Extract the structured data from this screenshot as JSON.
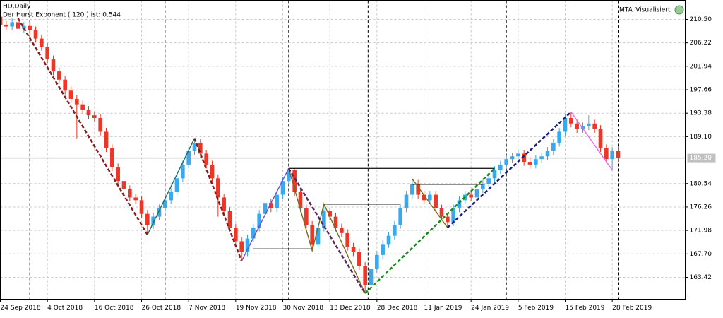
{
  "chart_data": {
    "type": "candlestick",
    "title": "HD,Daily",
    "subtitle": "Der Hurst Exponent ( 120 ) ist: 0.544",
    "annotation": "MTA_Visualisiert",
    "up_color": "#3aa8ec",
    "down_color": "#ee3526",
    "grid": true,
    "xlim": [
      0,
      116.4
    ],
    "ylim": [
      159.42,
      213.98
    ],
    "xticks": [
      {
        "value": 0,
        "label": "24 Sep 2018"
      },
      {
        "value": 8,
        "label": "4 Oct 2018"
      },
      {
        "value": 16,
        "label": "16 Oct 2018"
      },
      {
        "value": 24,
        "label": "26 Oct 2018"
      },
      {
        "value": 32,
        "label": "7 Nov 2018"
      },
      {
        "value": 40,
        "label": "19 Nov 2018"
      },
      {
        "value": 48,
        "label": "30 Nov 2018"
      },
      {
        "value": 56,
        "label": "13 Dec 2018"
      },
      {
        "value": 64,
        "label": "28 Dec 2018"
      },
      {
        "value": 72,
        "label": "11 Jan 2019"
      },
      {
        "value": 80,
        "label": "24 Jan 2019"
      },
      {
        "value": 88,
        "label": "5 Feb 2019"
      },
      {
        "value": 96,
        "label": "15 Feb 2019"
      },
      {
        "value": 104,
        "label": "28 Feb 2019"
      }
    ],
    "yticks": [
      {
        "value": 210.5,
        "label": "210.50"
      },
      206.22,
      201.94,
      197.66,
      193.38,
      {
        "value": 189.1,
        "label": "189.10"
      },
      180.54,
      176.26,
      171.98,
      {
        "value": 167.7,
        "label": "167.70"
      },
      163.42
    ],
    "current_price": {
      "value": 185.2,
      "label": "185.20"
    },
    "period_separators": [
      5,
      28,
      49,
      62.5,
      86,
      105
    ],
    "open": [
      211.0,
      209.5,
      209.2,
      210.0,
      208.8,
      209.3,
      208.5,
      207.0,
      205.5,
      203.2,
      201.0,
      199.5,
      197.5,
      196.0,
      195.0,
      194.0,
      193.0,
      192.5,
      190.0,
      187.0,
      183.5,
      181.0,
      179.5,
      178.0,
      177.5,
      175.0,
      173.0,
      174.5,
      176.0,
      177.5,
      179.0,
      181.5,
      184.0,
      186.5,
      188.0,
      186.0,
      184.0,
      181.5,
      178.0,
      175.5,
      172.5,
      170.0,
      168.0,
      170.5,
      172.5,
      175.0,
      177.0,
      176.0,
      178.5,
      181.0,
      183.0,
      179.0,
      176.0,
      173.0,
      169.5,
      172.5,
      175.5,
      174.5,
      172.5,
      171.5,
      169.0,
      168.0,
      165.5,
      162.0,
      165.0,
      167.5,
      169.5,
      171.0,
      173.0,
      176.0,
      178.5,
      180.5,
      178.5,
      177.5,
      178.5,
      176.0,
      174.5,
      173.5,
      176.0,
      177.5,
      178.5,
      178.0,
      179.5,
      180.5,
      181.5,
      183.0,
      184.0,
      185.0,
      185.5,
      186.0,
      184.5,
      184.0,
      185.0,
      185.5,
      186.5,
      188.0,
      190.0,
      192.5,
      191.5,
      190.5,
      191.0,
      191.5,
      190.5,
      187.0,
      185.0,
      186.5
    ],
    "high": [
      211.7,
      210.2,
      210.7,
      210.7,
      210.0,
      210.0,
      209.2,
      207.7,
      206.2,
      203.9,
      201.7,
      200.2,
      198.2,
      196.7,
      195.7,
      194.7,
      193.7,
      193.2,
      190.7,
      187.7,
      184.2,
      181.7,
      180.2,
      178.7,
      178.2,
      175.7,
      175.2,
      176.7,
      178.2,
      179.7,
      182.2,
      184.7,
      187.2,
      188.8,
      188.7,
      186.7,
      184.7,
      182.2,
      178.7,
      176.2,
      173.2,
      170.7,
      171.2,
      173.2,
      175.7,
      177.7,
      177.7,
      179.2,
      181.7,
      183.3,
      183.2,
      179.7,
      176.7,
      173.7,
      173.2,
      176.8,
      176.2,
      175.2,
      173.2,
      172.2,
      169.7,
      168.7,
      166.2,
      165.7,
      168.2,
      170.2,
      171.7,
      173.7,
      176.7,
      179.2,
      181.4,
      181.2,
      179.2,
      179.2,
      179.2,
      176.7,
      175.2,
      176.7,
      178.2,
      179.2,
      179.2,
      180.2,
      181.2,
      182.2,
      183.7,
      184.7,
      185.7,
      186.2,
      186.7,
      186.7,
      185.2,
      185.7,
      186.2,
      187.2,
      188.7,
      190.7,
      193.2,
      193.6,
      192.2,
      191.7,
      193.0,
      192.2,
      191.2,
      187.7,
      187.2,
      187.2
    ],
    "low": [
      208.8,
      208.5,
      208.5,
      208.1,
      208.1,
      207.8,
      206.3,
      204.8,
      202.5,
      200.3,
      198.8,
      196.8,
      195.3,
      188.8,
      193.3,
      192.3,
      191.8,
      189.3,
      186.3,
      182.8,
      180.3,
      178.8,
      177.3,
      176.8,
      174.3,
      171.2,
      172.3,
      173.8,
      175.3,
      176.8,
      178.3,
      180.8,
      183.3,
      185.8,
      185.3,
      183.3,
      180.8,
      174.5,
      174.8,
      171.8,
      169.3,
      166.4,
      167.3,
      169.8,
      171.8,
      174.3,
      175.3,
      175.3,
      177.8,
      180.3,
      178.3,
      175.3,
      172.3,
      168.3,
      168.8,
      171.8,
      173.8,
      171.8,
      170.8,
      168.3,
      167.3,
      164.8,
      160.5,
      161.3,
      164.3,
      166.8,
      168.8,
      170.3,
      172.3,
      175.3,
      177.8,
      177.8,
      176.8,
      176.8,
      175.3,
      173.8,
      172.5,
      172.8,
      175.3,
      176.8,
      177.3,
      177.3,
      178.8,
      179.8,
      180.8,
      182.3,
      183.3,
      184.3,
      184.8,
      183.8,
      183.3,
      183.3,
      184.3,
      184.8,
      185.8,
      187.3,
      189.3,
      190.8,
      189.8,
      189.8,
      190.3,
      189.8,
      186.3,
      184.3,
      183.0,
      184.5
    ],
    "close": [
      209.5,
      209.2,
      210.0,
      208.8,
      209.3,
      208.5,
      207.0,
      205.5,
      203.2,
      201.0,
      199.5,
      197.5,
      196.0,
      195.0,
      194.0,
      193.0,
      192.5,
      190.0,
      187.0,
      183.5,
      181.0,
      179.5,
      178.0,
      177.5,
      175.0,
      173.0,
      174.5,
      176.0,
      177.5,
      179.0,
      181.5,
      184.0,
      186.5,
      188.0,
      186.0,
      184.0,
      181.5,
      178.0,
      175.5,
      172.5,
      170.0,
      168.0,
      170.5,
      172.5,
      175.0,
      177.0,
      176.0,
      178.5,
      181.0,
      183.0,
      179.0,
      176.0,
      173.0,
      169.5,
      172.5,
      175.5,
      174.5,
      172.5,
      171.5,
      169.0,
      168.0,
      165.5,
      162.0,
      165.0,
      167.5,
      169.5,
      171.0,
      173.0,
      176.0,
      178.5,
      180.5,
      178.5,
      177.5,
      178.5,
      176.0,
      174.5,
      173.5,
      176.0,
      177.5,
      178.5,
      178.0,
      179.5,
      180.5,
      181.5,
      183.0,
      184.0,
      185.0,
      185.5,
      186.0,
      184.5,
      184.0,
      185.0,
      185.5,
      186.5,
      188.0,
      190.0,
      192.5,
      191.5,
      190.5,
      191.0,
      191.5,
      190.5,
      187.0,
      185.0,
      186.5,
      185.2
    ],
    "lines": [
      {
        "color": "#222222",
        "dash": false,
        "x": [
          49,
          84
        ],
        "y": [
          183.3,
          183.3
        ]
      },
      {
        "color": "#222222",
        "dash": false,
        "x": [
          55,
          68
        ],
        "y": [
          176.8,
          176.8
        ]
      },
      {
        "color": "#222222",
        "dash": false,
        "x": [
          43,
          53
        ],
        "y": [
          168.6,
          168.6
        ]
      },
      {
        "color": "#222222",
        "dash": false,
        "x": [
          70,
          82
        ],
        "y": [
          180.4,
          180.4
        ]
      },
      {
        "color": "#7a6a1a",
        "dash": false,
        "x": [
          49,
          53,
          55,
          62
        ],
        "y": [
          183.3,
          168.3,
          176.8,
          160.5
        ]
      },
      {
        "color": "#7a6a1a",
        "dash": false,
        "x": [
          70,
          76
        ],
        "y": [
          181.4,
          172.5
        ]
      },
      {
        "color": "#8b1a1a",
        "dash": true,
        "x": [
          3,
          25
        ],
        "y": [
          210.7,
          171.2
        ]
      },
      {
        "color": "#1a6e5e",
        "dash": false,
        "x": [
          25,
          33
        ],
        "y": [
          171.2,
          188.8
        ]
      },
      {
        "color": "#8b1a1a",
        "dash": true,
        "x": [
          33,
          41
        ],
        "y": [
          188.8,
          166.4
        ]
      },
      {
        "color": "#6a4fc8",
        "dash": false,
        "x": [
          41,
          49
        ],
        "y": [
          166.4,
          183.3
        ]
      },
      {
        "color": "#5a2a5a",
        "dash": true,
        "x": [
          49,
          62
        ],
        "y": [
          183.3,
          160.5
        ]
      },
      {
        "color": "#1a8c1a",
        "dash": true,
        "x": [
          62,
          84
        ],
        "y": [
          160.5,
          183.3
        ]
      },
      {
        "color": "#1a237e",
        "dash": true,
        "x": [
          76,
          97
        ],
        "y": [
          172.5,
          193.6
        ]
      },
      {
        "color": "#ee66ee",
        "dash": false,
        "x": [
          97,
          104
        ],
        "y": [
          193.6,
          183.0
        ]
      }
    ]
  }
}
